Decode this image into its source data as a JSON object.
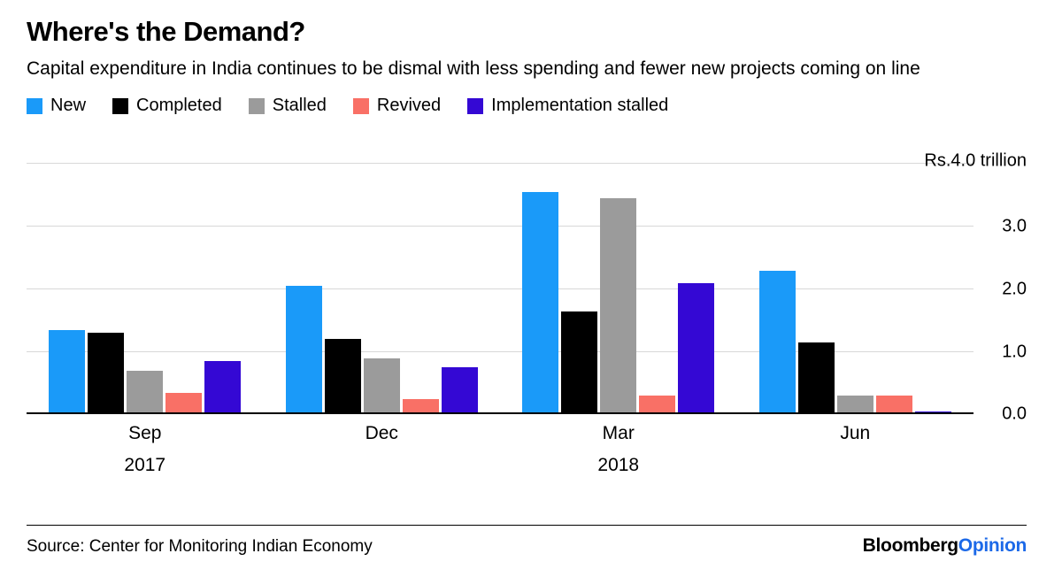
{
  "header": {
    "title": "Where's the Demand?",
    "subtitle": "Capital expenditure in India continues to be dismal with less spending and fewer new projects coming on line"
  },
  "colors": {
    "new": "#1a9af9",
    "completed": "#000000",
    "stalled": "#9b9b9b",
    "revived": "#f97066",
    "implementation_stalled": "#3408d4",
    "gridline": "#d8d8d8",
    "brand_blue": "#1c69e8"
  },
  "chart_data": {
    "type": "bar",
    "categories": [
      "Sep",
      "Dec",
      "Mar",
      "Jun"
    ],
    "category_year_labels": [
      "2017",
      "",
      "2018",
      ""
    ],
    "series": [
      {
        "name": "New",
        "color": "#1a9af9",
        "values": [
          1.35,
          2.05,
          3.55,
          2.3
        ]
      },
      {
        "name": "Completed",
        "color": "#000000",
        "values": [
          1.3,
          1.2,
          1.65,
          1.15
        ]
      },
      {
        "name": "Stalled",
        "color": "#9b9b9b",
        "values": [
          0.7,
          0.9,
          3.45,
          0.3
        ]
      },
      {
        "name": "Revived",
        "color": "#f97066",
        "values": [
          0.35,
          0.25,
          0.3,
          0.3
        ]
      },
      {
        "name": "Implementation stalled",
        "color": "#3408d4",
        "values": [
          0.85,
          0.75,
          2.1,
          0.05
        ]
      }
    ],
    "title": "Where's the Demand?",
    "xlabel": "",
    "ylabel": "Rs. trillion",
    "ylim": [
      0,
      4
    ],
    "yticks": [
      0,
      1,
      2,
      3
    ],
    "ytick_labels": [
      "0.0",
      "1.0",
      "2.0",
      "3.0"
    ],
    "ymax_label": "Rs.4.0 trillion",
    "grid": true,
    "legend_position": "top",
    "axis_side": "right"
  },
  "footer": {
    "source": "Source: Center for Monitoring Indian Economy",
    "brand_black": "Bloomberg",
    "brand_blue": "Opinion"
  }
}
